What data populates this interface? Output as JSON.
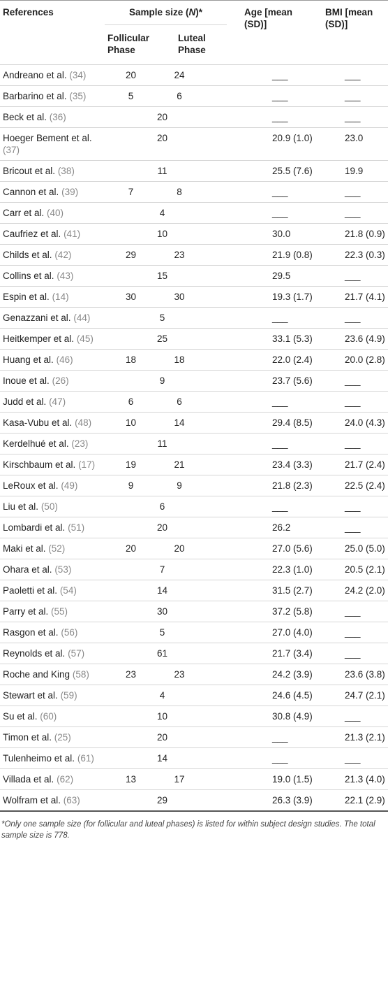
{
  "header": {
    "references": "References",
    "sample_size": [
      "Sample size (",
      "N",
      ")*"
    ],
    "follicular": "Follicular Phase",
    "luteal": "Luteal Phase",
    "age": "Age [mean (SD)]",
    "bmi": "BMI [mean (SD)]"
  },
  "table": {
    "rows": [
      {
        "ref": "Andreano et al.",
        "cite": "(34)",
        "follicular": 20,
        "luteal": 24,
        "age": "___",
        "bmi": "___"
      },
      {
        "ref": "Barbarino et al.",
        "cite": "(35)",
        "follicular": 5,
        "luteal": 6,
        "age": "___",
        "bmi": "___"
      },
      {
        "ref": "Beck et al.",
        "cite": "(36)",
        "sample": 20,
        "age": "___",
        "bmi": "___"
      },
      {
        "ref": "Hoeger Bement et al.",
        "cite": "(37)",
        "sample": 20,
        "age": "20.9 (1.0)",
        "bmi": "23.0"
      },
      {
        "ref": "Bricout et al.",
        "cite": "(38)",
        "sample": 11,
        "age": "25.5 (7.6)",
        "bmi": "19.9"
      },
      {
        "ref": "Cannon et al.",
        "cite": "(39)",
        "follicular": 7,
        "luteal": 8,
        "age": "___",
        "bmi": "___"
      },
      {
        "ref": "Carr et al.",
        "cite": "(40)",
        "sample": 4,
        "age": "___",
        "bmi": "___"
      },
      {
        "ref": "Caufriez et al.",
        "cite": "(41)",
        "sample": 10,
        "age": "30.0",
        "bmi": "21.8 (0.9)"
      },
      {
        "ref": "Childs et al.",
        "cite": "(42)",
        "follicular": 29,
        "luteal": 23,
        "age": "21.9 (0.8)",
        "bmi": "22.3 (0.3)"
      },
      {
        "ref": "Collins et al.",
        "cite": "(43)",
        "sample": 15,
        "age": "29.5",
        "bmi": "___"
      },
      {
        "ref": "Espin et al.",
        "cite": "(14)",
        "follicular": 30,
        "luteal": 30,
        "age": "19.3 (1.7)",
        "bmi": "21.7 (4.1)"
      },
      {
        "ref": "Genazzani et al.",
        "cite": "(44)",
        "sample": 5,
        "age": "___",
        "bmi": "___"
      },
      {
        "ref": "Heitkemper et al.",
        "cite": "(45)",
        "sample": 25,
        "age": "33.1 (5.3)",
        "bmi": "23.6 (4.9)"
      },
      {
        "ref": "Huang et al.",
        "cite": "(46)",
        "follicular": 18,
        "luteal": 18,
        "age": "22.0 (2.4)",
        "bmi": "20.0 (2.8)"
      },
      {
        "ref": "Inoue et al.",
        "cite": "(26)",
        "sample": 9,
        "age": "23.7 (5.6)",
        "bmi": "___"
      },
      {
        "ref": "Judd et al.",
        "cite": "(47)",
        "follicular": 6,
        "luteal": 6,
        "age": "___",
        "bmi": "___"
      },
      {
        "ref": "Kasa-Vubu et al.",
        "cite": "(48)",
        "follicular": 10,
        "luteal": 14,
        "age": "29.4 (8.5)",
        "bmi": "24.0 (4.3)"
      },
      {
        "ref": "Kerdelhué et al.",
        "cite": "(23)",
        "sample": 11,
        "age": "___",
        "bmi": "___"
      },
      {
        "ref": "Kirschbaum et al.",
        "cite": "(17)",
        "follicular": 19,
        "luteal": 21,
        "age": "23.4 (3.3)",
        "bmi": "21.7 (2.4)"
      },
      {
        "ref": "LeRoux et al.",
        "cite": "(49)",
        "follicular": 9,
        "luteal": 9,
        "age": "21.8 (2.3)",
        "bmi": "22.5 (2.4)"
      },
      {
        "ref": "Liu et al.",
        "cite": "(50)",
        "sample": 6,
        "age": "___",
        "bmi": "___"
      },
      {
        "ref": "Lombardi et al.",
        "cite": "(51)",
        "sample": 20,
        "age": "26.2",
        "bmi": "___"
      },
      {
        "ref": "Maki et al.",
        "cite": "(52)",
        "follicular": 20,
        "luteal": 20,
        "age": "27.0 (5.6)",
        "bmi": "25.0 (5.0)"
      },
      {
        "ref": "Ohara et al.",
        "cite": "(53)",
        "sample": 7,
        "age": "22.3 (1.0)",
        "bmi": "20.5 (2.1)"
      },
      {
        "ref": "Paoletti et al.",
        "cite": "(54)",
        "sample": 14,
        "age": "31.5 (2.7)",
        "bmi": "24.2 (2.0)"
      },
      {
        "ref": "Parry et al.",
        "cite": "(55)",
        "sample": 30,
        "age": "37.2 (5.8)",
        "bmi": "___"
      },
      {
        "ref": "Rasgon et al.",
        "cite": "(56)",
        "sample": 5,
        "age": "27.0 (4.0)",
        "bmi": "___"
      },
      {
        "ref": "Reynolds et al.",
        "cite": "(57)",
        "sample": 61,
        "age": "21.7 (3.4)",
        "bmi": "___"
      },
      {
        "ref": "Roche and King",
        "cite": "(58)",
        "follicular": 23,
        "luteal": 23,
        "age": "24.2 (3.9)",
        "bmi": "23.6 (3.8)"
      },
      {
        "ref": "Stewart et al.",
        "cite": "(59)",
        "sample": 4,
        "age": "24.6 (4.5)",
        "bmi": "24.7 (2.1)"
      },
      {
        "ref": "Su et al.",
        "cite": "(60)",
        "sample": 10,
        "age": "30.8 (4.9)",
        "bmi": "___"
      },
      {
        "ref": "Timon et al.",
        "cite": "(25)",
        "sample": 20,
        "age": "___",
        "bmi": "21.3 (2.1)"
      },
      {
        "ref": "Tulenheimo et al.",
        "cite": "(61)",
        "sample": 14,
        "age": "___",
        "bmi": "___"
      },
      {
        "ref": "Villada et al.",
        "cite": "(62)",
        "follicular": 13,
        "luteal": 17,
        "age": "19.0 (1.5)",
        "bmi": "21.3 (4.0)"
      },
      {
        "ref": "Wolfram et al.",
        "cite": "(63)",
        "sample": 29,
        "age": "26.3 (3.9)",
        "bmi": "22.1 (2.9)"
      }
    ]
  },
  "footnote": "*Only one sample size (for follicular and luteal phases) is listed for within subject design studies. The total sample size is 778."
}
